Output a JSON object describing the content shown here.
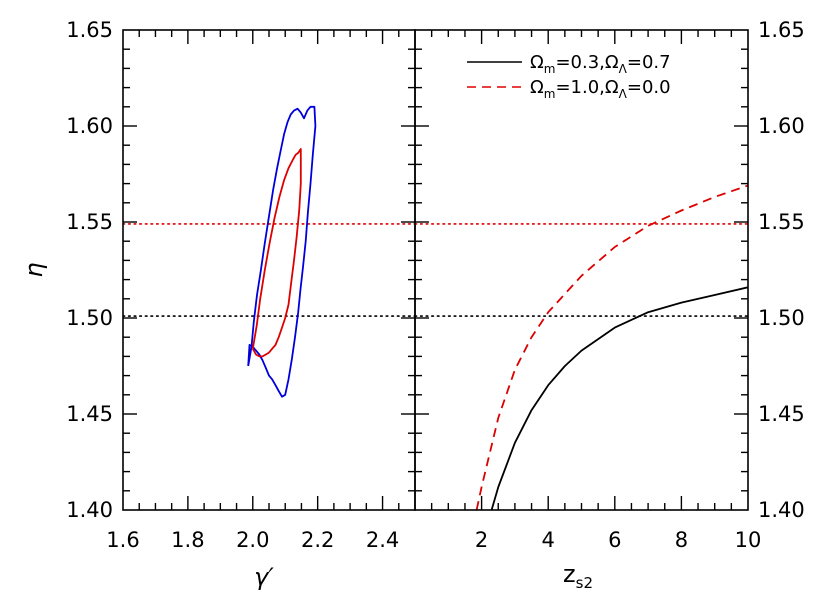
{
  "chart_data": [
    {
      "type": "contour",
      "panel": "left",
      "xlabel": "γ′",
      "ylabel": "η",
      "xlim": [
        1.6,
        2.5
      ],
      "ylim": [
        1.4,
        1.65
      ],
      "xticks": [
        "1.6",
        "1.8",
        "2.0",
        "2.2",
        "2.4"
      ],
      "yticks": [
        "1.40",
        "1.45",
        "1.50",
        "1.55",
        "1.60",
        "1.65"
      ],
      "series": [
        {
          "color": "#0000dd",
          "style": "solid",
          "x": [
            1.986,
            1.996,
            2.003,
            2.013,
            2.025,
            2.037,
            2.05,
            2.063,
            2.075,
            2.087,
            2.097,
            2.107,
            2.117,
            2.127,
            2.138,
            2.148,
            2.158,
            2.168,
            2.178,
            2.19,
            2.193,
            2.185,
            2.178,
            2.17,
            2.163,
            2.155,
            2.147,
            2.14,
            2.13,
            2.12,
            2.11,
            2.1,
            2.09,
            2.08,
            2.07,
            2.06,
            2.05,
            2.04,
            2.03,
            2.02,
            2.01,
            2.0,
            1.99,
            1.986
          ],
          "y": [
            1.475,
            1.485,
            1.498,
            1.512,
            1.525,
            1.539,
            1.553,
            1.567,
            1.578,
            1.588,
            1.596,
            1.602,
            1.606,
            1.608,
            1.609,
            1.607,
            1.604,
            1.608,
            1.61,
            1.61,
            1.6,
            1.585,
            1.57,
            1.555,
            1.54,
            1.527,
            1.515,
            1.503,
            1.49,
            1.478,
            1.468,
            1.46,
            1.459,
            1.462,
            1.465,
            1.468,
            1.47,
            1.474,
            1.478,
            1.481,
            1.483,
            1.485,
            1.486,
            1.475
          ]
        },
        {
          "color": "#dd0000",
          "style": "solid",
          "x": [
            2.0,
            2.012,
            2.023,
            2.037,
            2.052,
            2.067,
            2.082,
            2.097,
            2.11,
            2.122,
            2.132,
            2.14,
            2.148,
            2.148,
            2.143,
            2.135,
            2.127,
            2.118,
            2.11,
            2.1,
            2.09,
            2.08,
            2.07,
            2.06,
            2.05,
            2.04,
            2.03,
            2.02,
            2.01,
            2.0
          ],
          "y": [
            1.484,
            1.496,
            1.51,
            1.525,
            1.539,
            1.552,
            1.563,
            1.572,
            1.578,
            1.582,
            1.585,
            1.586,
            1.588,
            1.57,
            1.556,
            1.542,
            1.53,
            1.518,
            1.507,
            1.5,
            1.495,
            1.49,
            1.486,
            1.484,
            1.482,
            1.481,
            1.48,
            1.48,
            1.481,
            1.484
          ]
        }
      ],
      "hlines": [
        {
          "y": 1.549,
          "color": "#dd0000",
          "style": "dotted"
        },
        {
          "y": 1.501,
          "color": "#000000",
          "style": "dotted"
        }
      ]
    },
    {
      "type": "line",
      "panel": "right",
      "xlabel": "z",
      "xlabel_sub": "s2",
      "xlim": [
        0,
        10
      ],
      "ylim": [
        1.4,
        1.65
      ],
      "xticks": [
        "2",
        "4",
        "6",
        "8",
        "10"
      ],
      "yticks": [
        "1.40",
        "1.45",
        "1.50",
        "1.55",
        "1.60",
        "1.65"
      ],
      "legend_position": "top-right",
      "series": [
        {
          "name_sym1": "Ω",
          "name_sub1": "m",
          "name_mid": "=0.3,",
          "name_sym2": "Ω",
          "name_sub2": "Λ",
          "name_end": "=0.7",
          "color": "#000000",
          "style": "solid",
          "x": [
            2.3,
            2.5,
            3.0,
            3.5,
            4.0,
            4.5,
            5.0,
            6.0,
            7.0,
            8.0,
            9.0,
            10.0
          ],
          "y": [
            1.4,
            1.412,
            1.435,
            1.452,
            1.465,
            1.475,
            1.483,
            1.495,
            1.503,
            1.508,
            1.512,
            1.516
          ]
        },
        {
          "name_sym1": "Ω",
          "name_sub1": "m",
          "name_mid": "=1.0,",
          "name_sym2": "Ω",
          "name_sub2": "Λ",
          "name_end": "=0.0",
          "color": "#dd0000",
          "style": "dashed",
          "x": [
            1.85,
            2.0,
            2.5,
            3.0,
            3.5,
            4.0,
            5.0,
            6.0,
            7.0,
            8.0,
            9.0,
            10.0
          ],
          "y": [
            1.4,
            1.412,
            1.448,
            1.473,
            1.49,
            1.503,
            1.522,
            1.537,
            1.548,
            1.556,
            1.563,
            1.569
          ]
        }
      ],
      "hlines": [
        {
          "y": 1.549,
          "color": "#dd0000",
          "style": "dotted"
        },
        {
          "y": 1.501,
          "color": "#000000",
          "style": "dotted"
        }
      ]
    }
  ]
}
